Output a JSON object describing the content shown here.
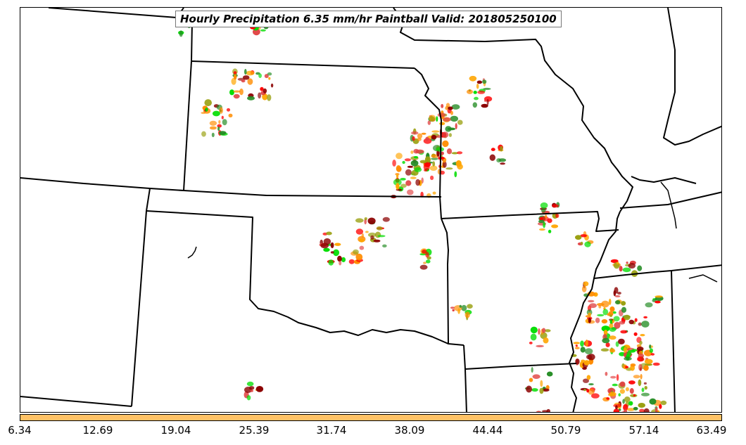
{
  "title": "Hourly Precipitation 6.35 mm/hr Paintball Valid: 201805250100",
  "colorbar": {
    "color": "#ffc266",
    "ticks": [
      "6.34",
      "12.69",
      "19.04",
      "25.39",
      "31.74",
      "38.09",
      "44.44",
      "50.79",
      "57.14",
      "63.49"
    ]
  },
  "map": {
    "background": "#ffffff",
    "boundary_color": "#000000",
    "paintball_palette": [
      "#ff0000",
      "#8b0000",
      "#00dd00",
      "#228b22",
      "#ff8c00",
      "#ffa500",
      "#9aa010",
      "#e04040"
    ]
  }
}
